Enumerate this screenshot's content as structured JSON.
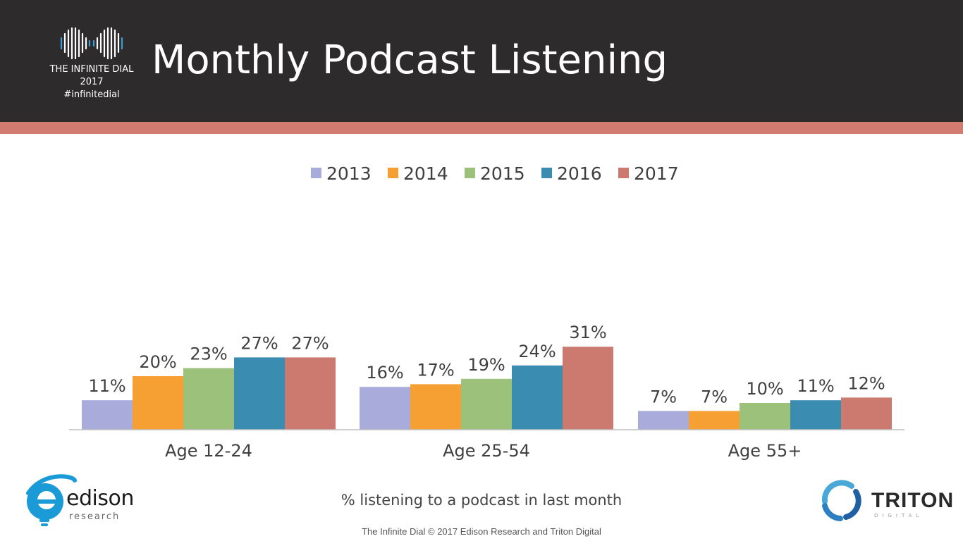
{
  "header": {
    "title": "Monthly Podcast Listening",
    "logo": {
      "line1": "THE INFINITE DIAL",
      "line2": "2017",
      "line3": "#infinitedial"
    }
  },
  "chart_data": {
    "type": "bar",
    "categories": [
      "Age  12-24",
      "Age  25-54",
      "Age  55+"
    ],
    "series": [
      {
        "name": "2013",
        "color": "#a9acdb",
        "values": [
          11,
          16,
          7
        ],
        "labels": [
          "11%",
          "16%",
          "7%"
        ]
      },
      {
        "name": "2014",
        "color": "#f6a033",
        "values": [
          20,
          17,
          7
        ],
        "labels": [
          "20%",
          "17%",
          "7%"
        ]
      },
      {
        "name": "2015",
        "color": "#9bc17a",
        "values": [
          23,
          19,
          10
        ],
        "labels": [
          "23%",
          "19%",
          "10%"
        ]
      },
      {
        "name": "2016",
        "color": "#3a8cb0",
        "values": [
          27,
          24,
          11
        ],
        "labels": [
          "27%",
          "24%",
          "11%"
        ]
      },
      {
        "name": "2017",
        "color": "#cc7970",
        "values": [
          27,
          31,
          12
        ],
        "labels": [
          "27%",
          "31%",
          "12%"
        ]
      }
    ],
    "ylim": [
      0,
      100
    ],
    "legend": "top",
    "grid": false
  },
  "footer": {
    "subtitle": "% listening to a podcast in last month",
    "copyright": "The Infinite Dial   © 2017 Edison Research and Triton Digital",
    "edison": {
      "word": "edison",
      "sub": "research"
    },
    "triton": {
      "word": "TRITON",
      "sub": "DIGITAL"
    }
  }
}
